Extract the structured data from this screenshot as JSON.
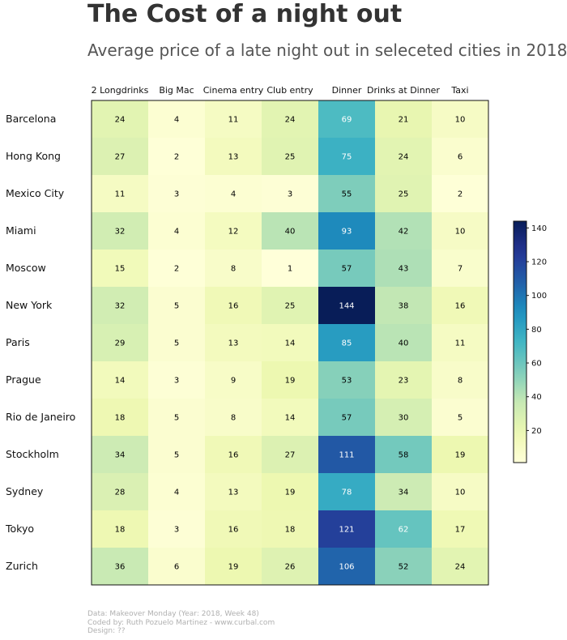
{
  "title": "The Cost of a night out",
  "subtitle": "Average price of a late night out in seleceted cities in 2018",
  "chart_data": {
    "type": "heatmap",
    "columns": [
      "2 Longdrinks",
      "Big Mac",
      "Cinema entry",
      "Club entry",
      "Dinner",
      "Drinks at Dinner",
      "Taxi"
    ],
    "rows": [
      "Barcelona",
      "Hong Kong",
      "Mexico City",
      "Miami",
      "Moscow",
      "New York",
      "Paris",
      "Prague",
      "Rio de Janeiro",
      "Stockholm",
      "Sydney",
      "Tokyo",
      "Zurich"
    ],
    "values": [
      [
        24,
        4,
        11,
        24,
        69,
        21,
        10
      ],
      [
        27,
        2,
        13,
        25,
        75,
        24,
        6
      ],
      [
        11,
        3,
        4,
        3,
        55,
        25,
        2
      ],
      [
        32,
        4,
        12,
        40,
        93,
        42,
        10
      ],
      [
        15,
        2,
        8,
        1,
        57,
        43,
        7
      ],
      [
        32,
        5,
        16,
        25,
        144,
        38,
        16
      ],
      [
        29,
        5,
        13,
        14,
        85,
        40,
        11
      ],
      [
        14,
        3,
        9,
        19,
        53,
        23,
        8
      ],
      [
        18,
        5,
        8,
        14,
        57,
        30,
        5
      ],
      [
        34,
        5,
        16,
        27,
        111,
        58,
        19
      ],
      [
        28,
        4,
        13,
        19,
        78,
        34,
        10
      ],
      [
        18,
        3,
        16,
        18,
        121,
        62,
        17
      ],
      [
        36,
        6,
        19,
        26,
        106,
        52,
        24
      ]
    ],
    "colormap": "YlGnBu",
    "vmin": 1,
    "vmax": 144,
    "colorbar_ticks": [
      20,
      40,
      60,
      80,
      100,
      120,
      140
    ],
    "label_color_light": "#ffffff",
    "label_color_dark": "#000000"
  },
  "footer": {
    "line1": "Data: Makeover Monday (Year: 2018, Week 48)",
    "line2": "Coded by: Ruth Pozuelo Martinez - www.curbal.com",
    "line3": "Design: ??"
  }
}
